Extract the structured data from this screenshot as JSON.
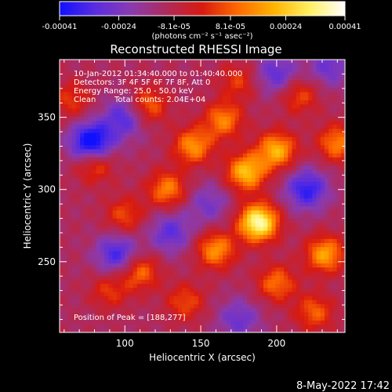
{
  "colorbar": {
    "tick_labels": [
      "-0.00041",
      "-0.00024",
      "-8.1e-05",
      "8.1e-05",
      "0.00024",
      "0.00041"
    ],
    "tick_values": [
      -0.00041,
      -0.00024,
      -8.1e-05,
      8.1e-05,
      0.00024,
      0.00041
    ],
    "range": [
      -0.00041,
      0.00041
    ],
    "unit_label": "(photons cm⁻² s⁻¹ asec⁻²)",
    "colors": [
      "#1010ff",
      "#5a2de0",
      "#8a3ab0",
      "#b02a5a",
      "#d81a10",
      "#ff6a00",
      "#ffb300",
      "#fff060",
      "#ffffff"
    ]
  },
  "chart_data": {
    "type": "heatmap",
    "title": "Reconstructed RHESSI Image",
    "xlabel": "Heliocentric X (arcsec)",
    "ylabel": "Heliocentric Y (arcsec)",
    "xlim": [
      57,
      245
    ],
    "ylim": [
      201,
      390
    ],
    "xticks": [
      100,
      150,
      200
    ],
    "xtick_labels": [
      "100",
      "150",
      "200"
    ],
    "yticks": [
      250,
      300,
      350
    ],
    "ytick_labels": [
      "250",
      "300",
      "350"
    ],
    "annotations": [
      "10-Jan-2012 01:34:40.000 to 01:40:40.000",
      "Detectors: 3F 4F 5F 6F 7F 8F, Att 0",
      "Energy Range: 25.0 - 50.0 keV",
      "Clean",
      "Total counts: 2.04E+04"
    ],
    "peak_label": "Position of Peak = [188,277]",
    "peak": [
      188,
      277
    ],
    "sources": [
      {
        "x": 188,
        "y": 277,
        "amp": 1.0
      },
      {
        "x": 180,
        "y": 312,
        "amp": 0.7
      },
      {
        "x": 200,
        "y": 327,
        "amp": 0.65
      },
      {
        "x": 145,
        "y": 330,
        "amp": 0.55
      },
      {
        "x": 165,
        "y": 348,
        "amp": 0.5
      },
      {
        "x": 115,
        "y": 358,
        "amp": 0.45
      },
      {
        "x": 128,
        "y": 300,
        "amp": 0.5
      },
      {
        "x": 100,
        "y": 282,
        "amp": 0.35
      },
      {
        "x": 80,
        "y": 318,
        "amp": 0.45
      },
      {
        "x": 240,
        "y": 332,
        "amp": 0.5
      },
      {
        "x": 232,
        "y": 255,
        "amp": 0.6
      },
      {
        "x": 160,
        "y": 258,
        "amp": 0.55
      },
      {
        "x": 110,
        "y": 243,
        "amp": 0.45
      },
      {
        "x": 200,
        "y": 235,
        "amp": 0.45
      },
      {
        "x": 225,
        "y": 215,
        "amp": 0.4
      },
      {
        "x": 90,
        "y": 230,
        "amp": 0.3
      },
      {
        "x": 140,
        "y": 222,
        "amp": 0.35
      },
      {
        "x": 175,
        "y": 375,
        "amp": 0.3
      },
      {
        "x": 215,
        "y": 365,
        "amp": 0.35
      },
      {
        "x": 65,
        "y": 362,
        "amp": 0.3
      }
    ],
    "negatives": [
      {
        "x": 78,
        "y": 332,
        "amp": 0.8
      },
      {
        "x": 100,
        "y": 350,
        "amp": 0.45
      },
      {
        "x": 220,
        "y": 300,
        "amp": 0.55
      },
      {
        "x": 95,
        "y": 255,
        "amp": 0.5
      },
      {
        "x": 130,
        "y": 270,
        "amp": 0.4
      },
      {
        "x": 200,
        "y": 380,
        "amp": 0.4
      },
      {
        "x": 155,
        "y": 290,
        "amp": 0.3
      },
      {
        "x": 235,
        "y": 385,
        "amp": 0.35
      },
      {
        "x": 175,
        "y": 210,
        "amp": 0.35
      }
    ]
  },
  "footer": {
    "timestamp": "8-May-2022 17:42"
  }
}
